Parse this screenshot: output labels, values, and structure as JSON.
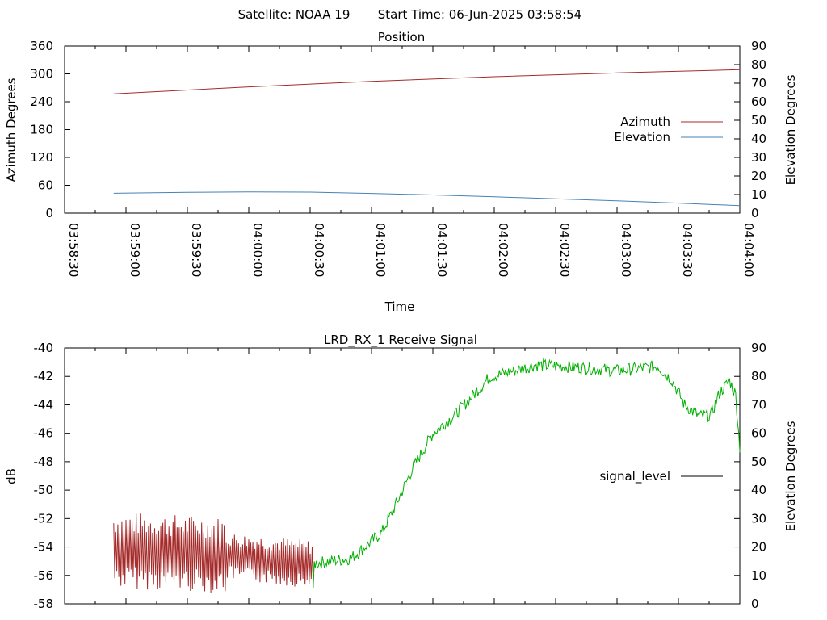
{
  "header": {
    "satellite_label": "Satellite: NOAA 19",
    "start_time_label": "Start Time: 06-Jun-2025 03:58:54"
  },
  "chart_data": [
    {
      "type": "line",
      "title": "Position",
      "xlabel": "Time",
      "ylabel": "Azimuth Degrees",
      "y2label": "Elevation Degrees",
      "xlim": [
        "03:58:30",
        "04:04:00"
      ],
      "ylim": [
        0,
        360
      ],
      "y2lim": [
        0,
        90
      ],
      "x_tick_labels": [
        "03:58:30",
        "03:59:00",
        "03:59:30",
        "04:00:00",
        "04:00:30",
        "04:01:00",
        "04:01:30",
        "04:02:00",
        "04:02:30",
        "04:03:00",
        "04:03:30",
        "04:04:00"
      ],
      "y_ticks": [
        0,
        60,
        120,
        180,
        240,
        300,
        360
      ],
      "y2_ticks": [
        0,
        10,
        20,
        30,
        40,
        50,
        60,
        70,
        80,
        90
      ],
      "legend_position": "right",
      "series": [
        {
          "name": "Azimuth",
          "axis": "y",
          "color": "#a52a2a",
          "points": [
            [
              "03:58:54",
              257
            ],
            [
              "04:00:00",
              272
            ],
            [
              "04:01:00",
              284
            ],
            [
              "04:02:00",
              294
            ],
            [
              "04:03:00",
              302
            ],
            [
              "04:04:00",
              309
            ]
          ]
        },
        {
          "name": "Elevation",
          "axis": "y2",
          "color": "#4682b4",
          "points": [
            [
              "03:58:54",
              10.7
            ],
            [
              "03:59:30",
              11.2
            ],
            [
              "04:00:00",
              11.4
            ],
            [
              "04:00:30",
              11.3
            ],
            [
              "04:01:00",
              10.6
            ],
            [
              "04:01:30",
              9.8
            ],
            [
              "04:02:00",
              8.8
            ],
            [
              "04:02:30",
              7.7
            ],
            [
              "04:03:00",
              6.6
            ],
            [
              "04:03:30",
              5.4
            ],
            [
              "04:04:00",
              4.0
            ]
          ]
        }
      ]
    },
    {
      "type": "line",
      "title": "LRD_RX_1 Receive Signal",
      "ylabel": "dB",
      "y2label": "Elevation Degrees",
      "xlim": [
        "03:58:30",
        "04:04:00"
      ],
      "ylim": [
        -58,
        -40
      ],
      "y2lim": [
        0,
        90
      ],
      "y_ticks": [
        -58,
        -56,
        -54,
        -52,
        -50,
        -48,
        -46,
        -44,
        -42,
        -40
      ],
      "y2_ticks": [
        0,
        10,
        20,
        30,
        40,
        50,
        60,
        70,
        80,
        90
      ],
      "legend_position": "right",
      "series": [
        {
          "name": "signal_level",
          "legend_color": "#000000",
          "segment_colors": {
            "below_lock": "#a52a2a",
            "locked": "#00b000"
          },
          "lock_time": "04:00:32",
          "start_time": "03:58:54",
          "end_time": "04:04:00",
          "anchors": [
            [
              "03:58:54",
              -54.2
            ],
            [
              "03:59:40",
              -54.5
            ],
            [
              "04:00:30",
              -55.2
            ],
            [
              "04:00:50",
              -54.8
            ],
            [
              "04:01:05",
              -53.0
            ],
            [
              "04:01:12",
              -51.0
            ],
            [
              "04:01:20",
              -48.5
            ],
            [
              "04:01:30",
              -46.0
            ],
            [
              "04:01:40",
              -44.8
            ],
            [
              "04:01:48",
              -43.6
            ],
            [
              "04:01:58",
              -42.0
            ],
            [
              "04:02:10",
              -41.6
            ],
            [
              "04:02:20",
              -41.2
            ],
            [
              "04:02:35",
              -41.3
            ],
            [
              "04:03:00",
              -41.6
            ],
            [
              "04:03:20",
              -41.3
            ],
            [
              "04:03:27",
              -42.3
            ],
            [
              "04:03:33",
              -44.0
            ],
            [
              "04:03:40",
              -44.8
            ],
            [
              "04:03:46",
              -44.7
            ],
            [
              "04:03:50",
              -43.2
            ],
            [
              "04:03:55",
              -42.3
            ],
            [
              "04:03:58",
              -43.3
            ],
            [
              "04:04:00",
              -47.0
            ]
          ]
        }
      ]
    }
  ]
}
